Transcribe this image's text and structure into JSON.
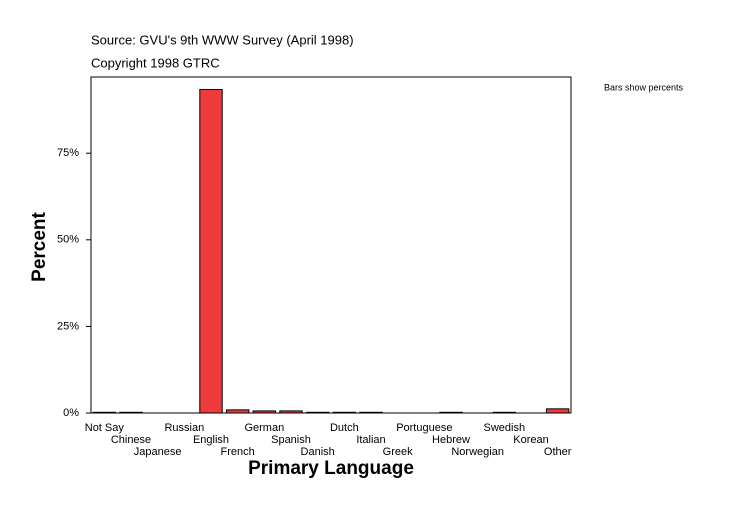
{
  "chart_data": {
    "type": "bar",
    "title": "Source: GVU's 9th WWW Survey (April 1998)",
    "subtitle": "Copyright 1998 GTRC",
    "annotation": "Bars show percents",
    "x_label": "Primary Language",
    "y_label": "Percent",
    "categories": [
      "Not Say",
      "Chinese",
      "Japanese",
      "Russian",
      "English",
      "French",
      "German",
      "Spanish",
      "Danish",
      "Dutch",
      "Italian",
      "Greek",
      "Portuguese",
      "Hebrew",
      "Norwegian",
      "Swedish",
      "Korean",
      "Other"
    ],
    "values": [
      0.2,
      0.2,
      0,
      0,
      93.4,
      0.9,
      0.6,
      0.6,
      0.2,
      0.2,
      0.2,
      0,
      0,
      0.2,
      0,
      0.2,
      0,
      1.2
    ],
    "color": "#ef3b3b",
    "ylim": [
      0,
      97
    ],
    "yticks": [
      {
        "value": 0,
        "label": "0%"
      },
      {
        "value": 25,
        "label": "25%"
      },
      {
        "value": 50,
        "label": "50%"
      },
      {
        "value": 75,
        "label": "75%"
      }
    ],
    "grid": false
  }
}
